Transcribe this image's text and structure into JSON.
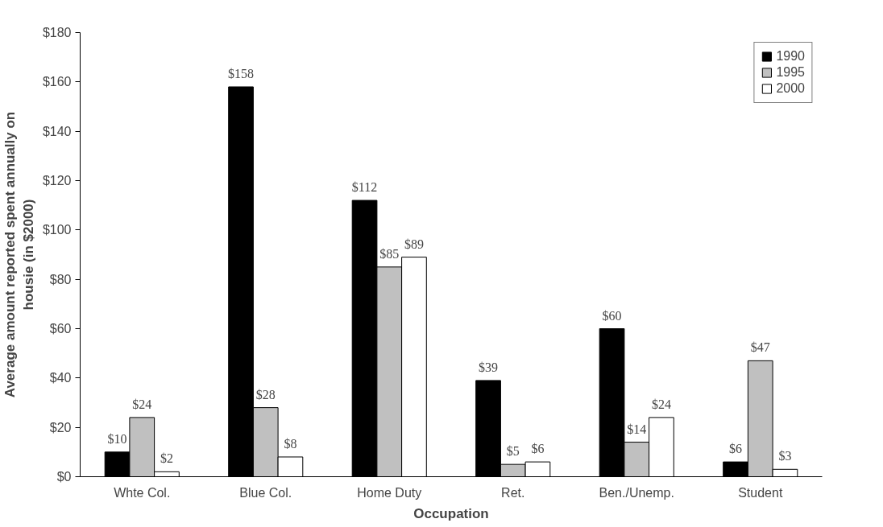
{
  "chart_data": {
    "type": "bar",
    "xlabel": "Occupation",
    "ylabel": "Average amount reported spent annually on housie (in $2000)",
    "categories": [
      "Whte Col.",
      "Blue Col.",
      "Home Duty",
      "Ret.",
      "Ben./Unemp.",
      "Student"
    ],
    "series": [
      {
        "name": "1990",
        "color": "#000000",
        "values": [
          10,
          158,
          112,
          39,
          60,
          6
        ],
        "value_labels": [
          "$10",
          "$158",
          "$112",
          "$39",
          "$60",
          "$6"
        ]
      },
      {
        "name": "1995",
        "color": "#c0c0c0",
        "values": [
          24,
          28,
          85,
          5,
          14,
          47
        ],
        "value_labels": [
          "$24",
          "$28",
          "$85",
          "$5",
          "$14",
          "$47"
        ]
      },
      {
        "name": "2000",
        "color": "#ffffff",
        "values": [
          2,
          8,
          89,
          6,
          24,
          3
        ],
        "value_labels": [
          "$2",
          "$8",
          "$89",
          "$6",
          "$24",
          "$3"
        ]
      }
    ],
    "ylim": [
      0,
      180
    ],
    "yticks": [
      {
        "value": 0,
        "label": "$0"
      },
      {
        "value": 20,
        "label": "$20"
      },
      {
        "value": 40,
        "label": "$40"
      },
      {
        "value": 60,
        "label": "$60"
      },
      {
        "value": 80,
        "label": "$80"
      },
      {
        "value": 100,
        "label": "$100"
      },
      {
        "value": 120,
        "label": "$120"
      },
      {
        "value": 140,
        "label": "$140"
      },
      {
        "value": 160,
        "label": "$160"
      },
      {
        "value": 180,
        "label": "$180"
      }
    ],
    "grid": false,
    "legend": "top right"
  }
}
